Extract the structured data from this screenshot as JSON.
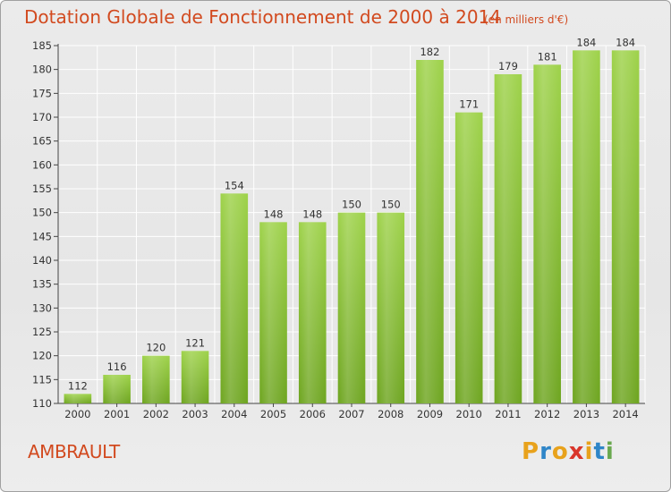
{
  "header": {
    "title": "Dotation Globale de Fonctionnement de 2000 à 2014",
    "subtitle": "(en milliers d'€)"
  },
  "footer": {
    "commune": "AMBRAULT",
    "logo_text": "Proxiti"
  },
  "colors": {
    "title": "#d24a1f",
    "bar_light": "#9ed24a",
    "bar_dark": "#6ea520",
    "grid": "#ffffff",
    "logo_letters": [
      "#e8a21c",
      "#2f86c8",
      "#e8a21c",
      "#d9362b",
      "#e8a21c",
      "#2f86c8",
      "#6aa84f"
    ]
  },
  "chart_data": {
    "type": "bar",
    "categories": [
      "2000",
      "2001",
      "2002",
      "2003",
      "2004",
      "2005",
      "2006",
      "2007",
      "2008",
      "2009",
      "2010",
      "2011",
      "2012",
      "2013",
      "2014"
    ],
    "values": [
      112,
      116,
      120,
      121,
      154,
      148,
      148,
      150,
      150,
      182,
      171,
      179,
      181,
      184,
      184
    ],
    "title": "Dotation Globale de Fonctionnement de 2000 à 2014",
    "subtitle": "(en milliers d'€)",
    "xlabel": "",
    "ylabel": "",
    "ylim": [
      110,
      185
    ],
    "yticks": [
      110,
      115,
      120,
      125,
      130,
      135,
      140,
      145,
      150,
      155,
      160,
      165,
      170,
      175,
      180,
      185
    ],
    "grid": true,
    "data_labels": true
  }
}
